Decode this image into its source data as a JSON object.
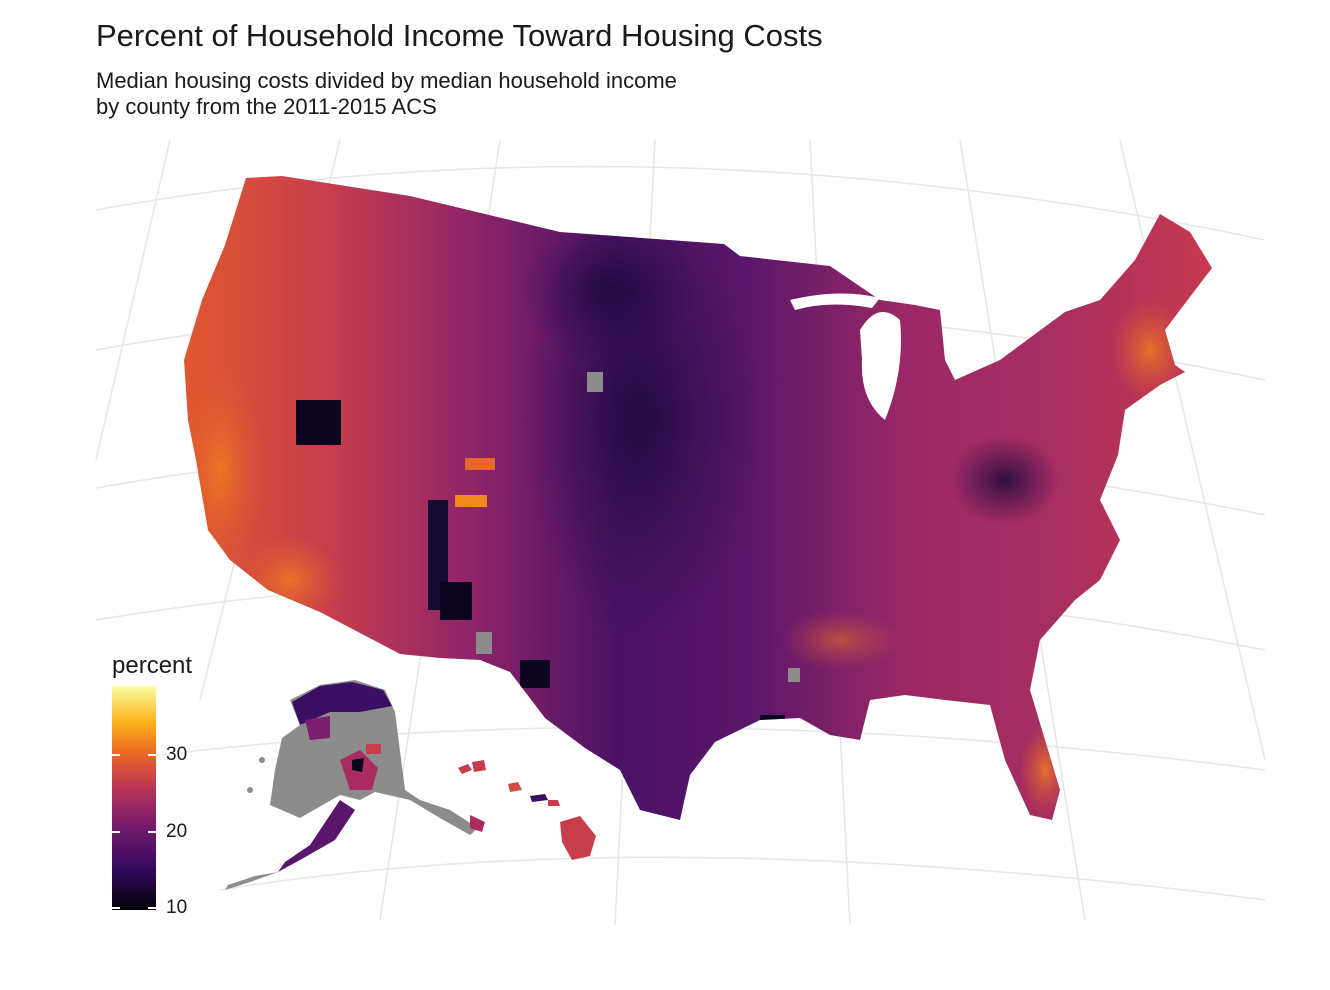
{
  "title": "Percent of Household Income Toward Housing Costs",
  "subtitle_lines": [
    "Median housing costs divided by median household income",
    "by county from the 2011-2015 ACS"
  ],
  "legend": {
    "title": "percent",
    "scale": "inferno",
    "colors": [
      "#000004",
      "#320a5e",
      "#781b6c",
      "#bb3654",
      "#ec6824",
      "#fbb41a",
      "#fcffa4"
    ],
    "min": 9.8,
    "max": 39,
    "ticks": [
      {
        "value": 10,
        "label": "10"
      },
      {
        "value": 20,
        "label": "20"
      },
      {
        "value": 30,
        "label": "30"
      }
    ]
  },
  "regions": [
    "Contiguous United States",
    "Alaska",
    "Hawaii"
  ],
  "missing_color": "#8c8c8c",
  "grid": true
}
